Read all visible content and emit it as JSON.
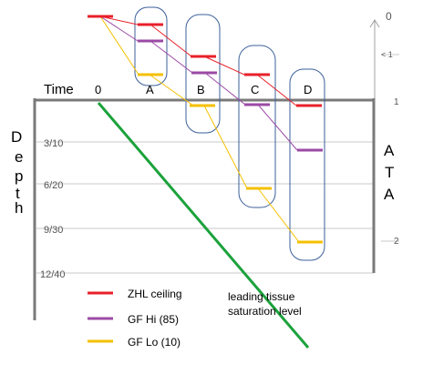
{
  "header": {
    "time_label": "Time",
    "zero_label": "0",
    "points": [
      "A",
      "B",
      "C",
      "D"
    ]
  },
  "depth_axis": {
    "title_letters": [
      "D",
      "e",
      "p",
      "t",
      "h"
    ],
    "ticks": [
      "3/10",
      "6/20",
      "9/30",
      "12/40"
    ]
  },
  "ata_axis": {
    "title_letters": [
      "A",
      "T",
      "A"
    ],
    "ticks": [
      "0",
      "< 1",
      "1",
      "2"
    ]
  },
  "legend": {
    "items": [
      {
        "label": "ZHL ceiling",
        "color": "#e8202a"
      },
      {
        "label": "GF Hi (85)",
        "color": "#9b4aa5"
      },
      {
        "label": "GF Lo (10)",
        "color": "#f5c000"
      }
    ]
  },
  "annotation": {
    "line1": "leading tissue",
    "line2": "saturation level"
  },
  "colors": {
    "frame": "#7a7a7a",
    "grid": "#c8c8c8",
    "tissue_line": "#1ca23c",
    "group_box": "#3b5f9a"
  }
}
